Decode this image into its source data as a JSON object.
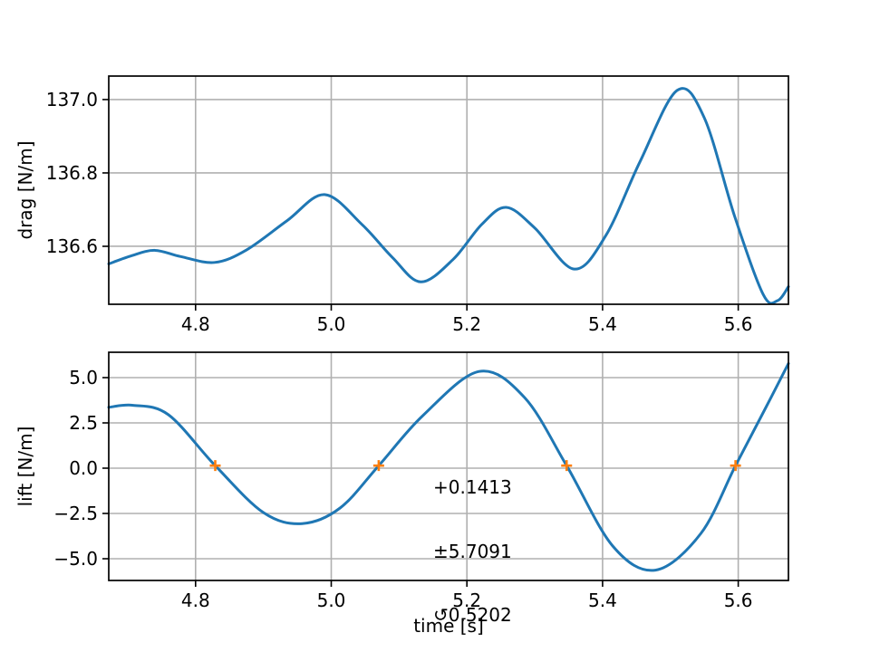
{
  "figure": {
    "background": "#ffffff"
  },
  "colors": {
    "line_blue": "#1f77b4",
    "marker_orange": "#ff7f0e",
    "grid_gray": "#b0b0b0",
    "text_black": "#000000"
  },
  "chart_data": [
    {
      "type": "line",
      "title": "",
      "xlabel": "",
      "ylabel": "drag [N/m]",
      "xlim": [
        4.672,
        5.674
      ],
      "ylim": [
        136.442,
        137.064
      ],
      "xticks": [
        4.8,
        5.0,
        5.2,
        5.4,
        5.6
      ],
      "xtick_labels": [
        "4.8",
        "5.0",
        "5.2",
        "5.4",
        "5.6"
      ],
      "yticks": [
        136.6,
        136.8,
        137.0
      ],
      "ytick_labels": [
        "136.6",
        "136.8",
        "137.0"
      ],
      "grid": true,
      "legend": null,
      "series": [
        {
          "name": "drag",
          "color": "#1f77b4",
          "points": [
            [
              4.672,
              136.552
            ],
            [
              4.705,
              136.574
            ],
            [
              4.74,
              136.589
            ],
            [
              4.778,
              136.572
            ],
            [
              4.828,
              136.556
            ],
            [
              4.875,
              136.59
            ],
            [
              4.935,
              136.67
            ],
            [
              4.99,
              136.741
            ],
            [
              5.045,
              136.66
            ],
            [
              5.09,
              136.57
            ],
            [
              5.132,
              136.503
            ],
            [
              5.18,
              136.565
            ],
            [
              5.222,
              136.66
            ],
            [
              5.258,
              136.706
            ],
            [
              5.3,
              136.65
            ],
            [
              5.358,
              136.538
            ],
            [
              5.405,
              136.63
            ],
            [
              5.455,
              136.83
            ],
            [
              5.51,
              137.025
            ],
            [
              5.55,
              136.95
            ],
            [
              5.595,
              136.68
            ],
            [
              5.637,
              136.468
            ],
            [
              5.658,
              136.452
            ],
            [
              5.674,
              136.49
            ]
          ]
        }
      ]
    },
    {
      "type": "line",
      "title": "",
      "xlabel": "time [s]",
      "ylabel": "lift [N/m]",
      "xlim": [
        4.672,
        5.674
      ],
      "ylim": [
        -6.2,
        6.4
      ],
      "xticks": [
        4.8,
        5.0,
        5.2,
        5.4,
        5.6
      ],
      "xtick_labels": [
        "4.8",
        "5.0",
        "5.2",
        "5.4",
        "5.6"
      ],
      "yticks": [
        -5.0,
        -2.5,
        0.0,
        2.5,
        5.0
      ],
      "ytick_labels": [
        "−5.0",
        "−2.5",
        "0.0",
        "2.5",
        "5.0"
      ],
      "grid": true,
      "legend": null,
      "series": [
        {
          "name": "lift",
          "color": "#1f77b4",
          "points": [
            [
              4.672,
              3.36
            ],
            [
              4.708,
              3.47
            ],
            [
              4.76,
              2.95
            ],
            [
              4.829,
              0.14
            ],
            [
              4.9,
              -2.45
            ],
            [
              4.957,
              -3.06
            ],
            [
              5.013,
              -2.2
            ],
            [
              5.07,
              0.14
            ],
            [
              5.135,
              2.9
            ],
            [
              5.218,
              5.34
            ],
            [
              5.285,
              3.9
            ],
            [
              5.347,
              0.14
            ],
            [
              5.415,
              -4.3
            ],
            [
              5.478,
              -5.63
            ],
            [
              5.545,
              -3.6
            ],
            [
              5.596,
              0.14
            ],
            [
              5.64,
              3.3
            ],
            [
              5.674,
              5.78
            ]
          ]
        }
      ],
      "markers": {
        "symbol": "plus",
        "color": "#ff7f0e",
        "y": 0.1413,
        "x": [
          4.829,
          5.07,
          5.347,
          5.596
        ]
      },
      "annotation": {
        "lines": [
          "+0.1413",
          "±5.7091",
          "↺0.5202"
        ]
      }
    }
  ]
}
